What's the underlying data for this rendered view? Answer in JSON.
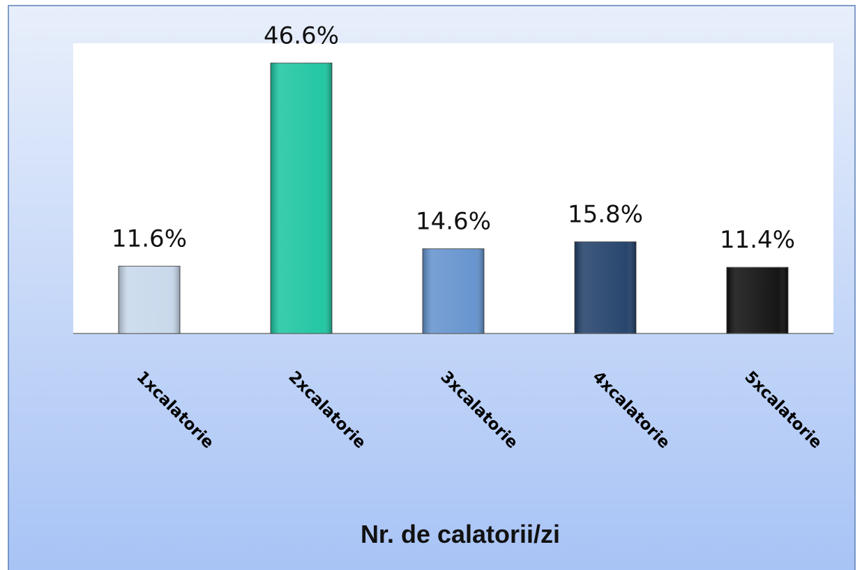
{
  "chart_data": {
    "type": "bar",
    "x_label": "Nr. de calatorii/zi",
    "categories": [
      "1xcalatorie",
      "2xcalatorie",
      "3xcalatorie",
      "4xcalatorie",
      "5xcalatorie"
    ],
    "values": [
      11.6,
      46.6,
      14.6,
      15.8,
      11.4
    ],
    "value_labels": [
      "11.6%",
      "46.6%",
      "14.6%",
      "15.8%",
      "11.4%"
    ],
    "colors": [
      "#c6d7ea",
      "#18c49f",
      "#6090cc",
      "#1d3c66",
      "#0a0a0a"
    ],
    "ylim": [
      0,
      50
    ]
  }
}
